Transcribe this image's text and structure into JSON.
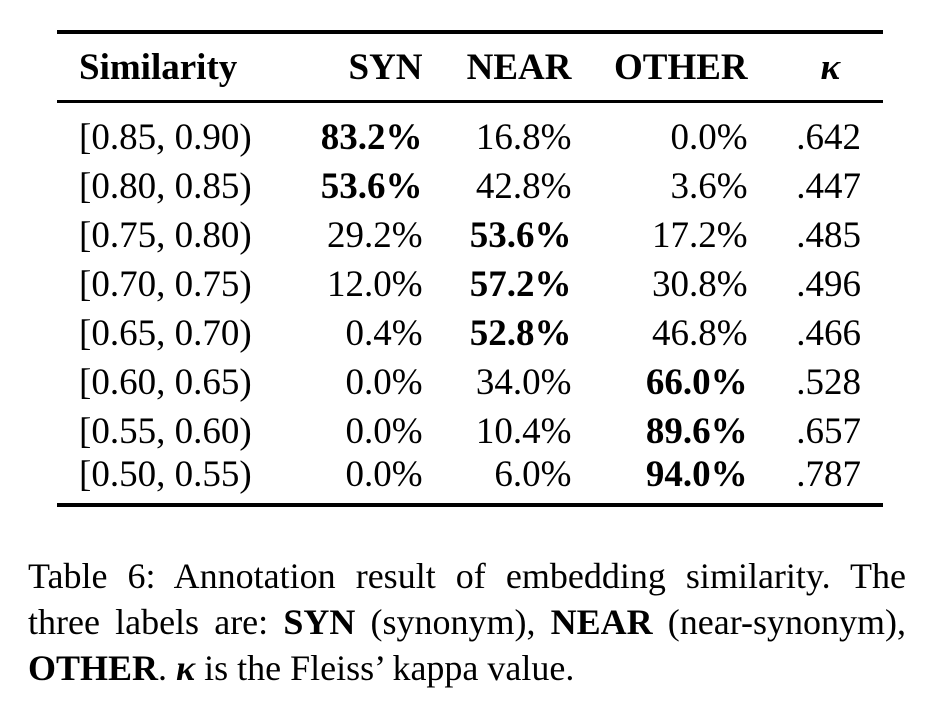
{
  "table": {
    "headers": {
      "similarity": "Similarity",
      "syn": "SYN",
      "near": "NEAR",
      "other": "OTHER",
      "kappa": "κ"
    },
    "rows": [
      {
        "range": "[0.85, 0.90)",
        "syn": "83.2%",
        "near": "16.8%",
        "other": "0.0%",
        "kappa": ".642",
        "bold": "syn"
      },
      {
        "range": "[0.80, 0.85)",
        "syn": "53.6%",
        "near": "42.8%",
        "other": "3.6%",
        "kappa": ".447",
        "bold": "syn"
      },
      {
        "range": "[0.75, 0.80)",
        "syn": "29.2%",
        "near": "53.6%",
        "other": "17.2%",
        "kappa": ".485",
        "bold": "near"
      },
      {
        "range": "[0.70, 0.75)",
        "syn": "12.0%",
        "near": "57.2%",
        "other": "30.8%",
        "kappa": ".496",
        "bold": "near"
      },
      {
        "range": "[0.65, 0.70)",
        "syn": "0.4%",
        "near": "52.8%",
        "other": "46.8%",
        "kappa": ".466",
        "bold": "near"
      },
      {
        "range": "[0.60, 0.65)",
        "syn": "0.0%",
        "near": "34.0%",
        "other": "66.0%",
        "kappa": ".528",
        "bold": "other"
      },
      {
        "range": "[0.55, 0.60)",
        "syn": "0.0%",
        "near": "10.4%",
        "other": "89.6%",
        "kappa": ".657",
        "bold": "other"
      },
      {
        "range": "[0.50, 0.55)",
        "syn": "0.0%",
        "near": "6.0%",
        "other": "94.0%",
        "kappa": ".787",
        "bold": "other"
      }
    ]
  },
  "caption": {
    "t1": "Table 6:  Annotation result of embedding similarity. The three labels are: ",
    "syn": "SYN",
    "t2": " (synonym), ",
    "near": "NEAR",
    "t3": " (near-synonym), ",
    "other": "OTHER",
    "t4": ". ",
    "kappa": "κ",
    "t5": " is the Fleiss’ kappa value."
  }
}
